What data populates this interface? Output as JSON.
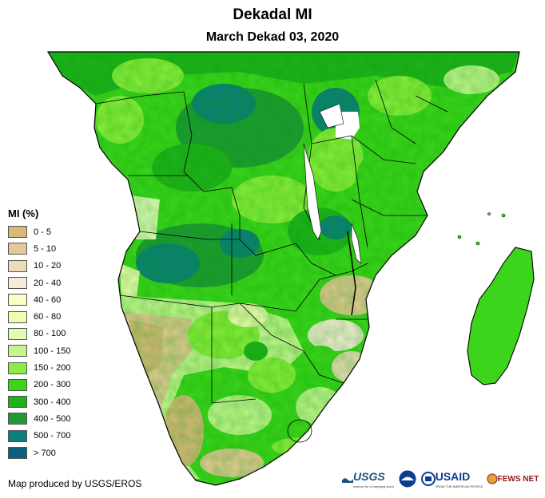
{
  "header": {
    "title": "Dekadal MI",
    "subtitle": "March Dekad 03, 2020"
  },
  "legend": {
    "title": "MI (%)",
    "items": [
      {
        "label": "0 - 5",
        "color": "#d9b97a"
      },
      {
        "label": "5 - 10",
        "color": "#e3c994"
      },
      {
        "label": "10 - 20",
        "color": "#ecdcb8"
      },
      {
        "label": "20 - 40",
        "color": "#f6ecd6"
      },
      {
        "label": "40 - 60",
        "color": "#fdfdc8"
      },
      {
        "label": "60 - 80",
        "color": "#f0fcb0"
      },
      {
        "label": "80 - 100",
        "color": "#e0fbb8"
      },
      {
        "label": "100 - 150",
        "color": "#c3f58e"
      },
      {
        "label": "150 - 200",
        "color": "#8aee3c"
      },
      {
        "label": "200 - 300",
        "color": "#3cd51c"
      },
      {
        "label": "300 - 400",
        "color": "#20b21c"
      },
      {
        "label": "400 - 500",
        "color": "#1f9a34"
      },
      {
        "label": "500 - 700",
        "color": "#0c7f7a"
      },
      {
        "label": "> 700",
        "color": "#0c5f80"
      }
    ]
  },
  "footer": {
    "credit": "Map produced by USGS/EROS",
    "logos": {
      "usgs": "USGS",
      "usgs_tagline": "science for a changing world",
      "usaid": "USAID",
      "usaid_tagline": "FROM THE AMERICAN PEOPLE",
      "fews": "FEWS NET"
    }
  }
}
